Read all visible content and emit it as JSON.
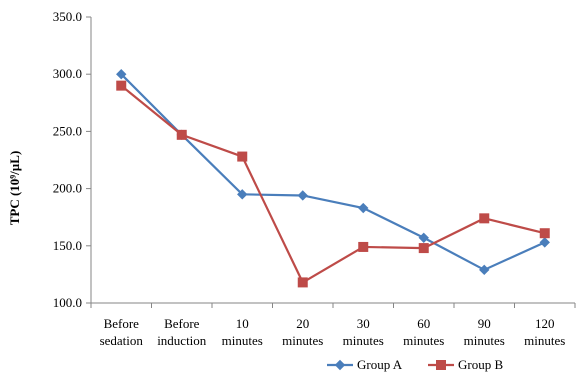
{
  "chart_data": {
    "type": "line",
    "title": "",
    "ylabel": "TPC (10⁹/µL)",
    "xlabel": "",
    "categories": [
      [
        "Before",
        "sedation"
      ],
      [
        "Before",
        "induction"
      ],
      [
        "10",
        "minutes"
      ],
      [
        "20",
        "minutes"
      ],
      [
        "30",
        "minutes"
      ],
      [
        "60",
        "minutes"
      ],
      [
        "90",
        "minutes"
      ],
      [
        "120",
        "minutes"
      ]
    ],
    "ylim": [
      100,
      350
    ],
    "yticks": [
      "100.0",
      "150.0",
      "200.0",
      "250.0",
      "300.0",
      "350.0"
    ],
    "grid": false,
    "legend": "bottom",
    "series": [
      {
        "name": "Group A",
        "color": "#4a7ebb",
        "marker": "diamond",
        "values": [
          300,
          247,
          195,
          194,
          183,
          157,
          129,
          153
        ]
      },
      {
        "name": "Group B",
        "color": "#be4b48",
        "marker": "square",
        "values": [
          290,
          247,
          228,
          118,
          149,
          148,
          174,
          161
        ]
      }
    ]
  }
}
